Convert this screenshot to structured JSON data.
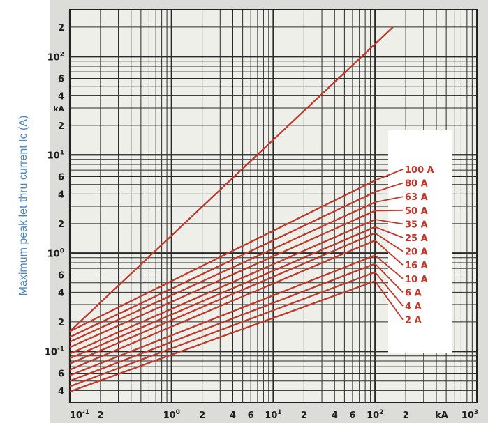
{
  "chart_data": {
    "type": "line",
    "title": "",
    "xlabel": "",
    "ylabel": "Maximum peak let thru current Ic (A)",
    "x_scale": "log",
    "y_scale": "log",
    "x_unit": "kA",
    "y_unit": "kA",
    "xlim": [
      0.1,
      1000
    ],
    "ylim": [
      0.03,
      300
    ],
    "grid": true,
    "legend": "right, labels at line ends",
    "line_color": "#c0392b",
    "x_ticks": [
      {
        "base": "10",
        "exp": "-1"
      },
      {
        "base": "2",
        "exp": ""
      },
      {
        "base": "10",
        "exp": "0"
      },
      {
        "base": "2",
        "exp": ""
      },
      {
        "base": "4",
        "exp": ""
      },
      {
        "base": "6",
        "exp": ""
      },
      {
        "base": "10",
        "exp": "1"
      },
      {
        "base": "2",
        "exp": ""
      },
      {
        "base": "4",
        "exp": ""
      },
      {
        "base": "6",
        "exp": ""
      },
      {
        "base": "10",
        "exp": "2"
      },
      {
        "base": "2",
        "exp": ""
      },
      {
        "base": "kA",
        "exp": ""
      },
      {
        "base": "10",
        "exp": "3"
      }
    ],
    "y_ticks": [
      {
        "base": "2",
        "exp": ""
      },
      {
        "base": "10",
        "exp": "2"
      },
      {
        "base": "6",
        "exp": ""
      },
      {
        "base": "4",
        "exp": ""
      },
      {
        "base": "kA",
        "exp": ""
      },
      {
        "base": "2",
        "exp": ""
      },
      {
        "base": "10",
        "exp": "1"
      },
      {
        "base": "6",
        "exp": ""
      },
      {
        "base": "4",
        "exp": ""
      },
      {
        "base": "2",
        "exp": ""
      },
      {
        "base": "10",
        "exp": "0"
      },
      {
        "base": "6",
        "exp": ""
      },
      {
        "base": "4",
        "exp": ""
      },
      {
        "base": "2",
        "exp": ""
      },
      {
        "base": "10",
        "exp": "-1"
      },
      {
        "base": "6",
        "exp": ""
      },
      {
        "base": "4",
        "exp": ""
      }
    ],
    "series": [
      {
        "name": "",
        "x": [
          0.1,
          150
        ],
        "y": [
          0.16,
          200
        ]
      },
      {
        "name": "100 A",
        "x": [
          0.1,
          100
        ],
        "y": [
          0.16,
          5.5
        ]
      },
      {
        "name": "80 A",
        "x": [
          0.1,
          100
        ],
        "y": [
          0.14,
          4.2
        ]
      },
      {
        "name": "63 A",
        "x": [
          0.1,
          100
        ],
        "y": [
          0.125,
          3.3
        ]
      },
      {
        "name": "50 A",
        "x": [
          0.1,
          100
        ],
        "y": [
          0.11,
          2.7
        ]
      },
      {
        "name": "35 A",
        "x": [
          0.1,
          100
        ],
        "y": [
          0.095,
          2.2
        ]
      },
      {
        "name": "25 A",
        "x": [
          0.1,
          100
        ],
        "y": [
          0.085,
          1.85
        ]
      },
      {
        "name": "20 A",
        "x": [
          0.1,
          100
        ],
        "y": [
          0.075,
          1.6
        ]
      },
      {
        "name": "16 A",
        "x": [
          0.1,
          100
        ],
        "y": [
          0.065,
          1.35
        ]
      },
      {
        "name": "10 A",
        "x": [
          0.1,
          100
        ],
        "y": [
          0.057,
          0.95
        ]
      },
      {
        "name": "6 A",
        "x": [
          0.1,
          100
        ],
        "y": [
          0.05,
          0.78
        ]
      },
      {
        "name": "4 A",
        "x": [
          0.1,
          100
        ],
        "y": [
          0.044,
          0.64
        ]
      },
      {
        "name": "2 A",
        "x": [
          0.1,
          100
        ],
        "y": [
          0.039,
          0.52
        ]
      }
    ]
  }
}
